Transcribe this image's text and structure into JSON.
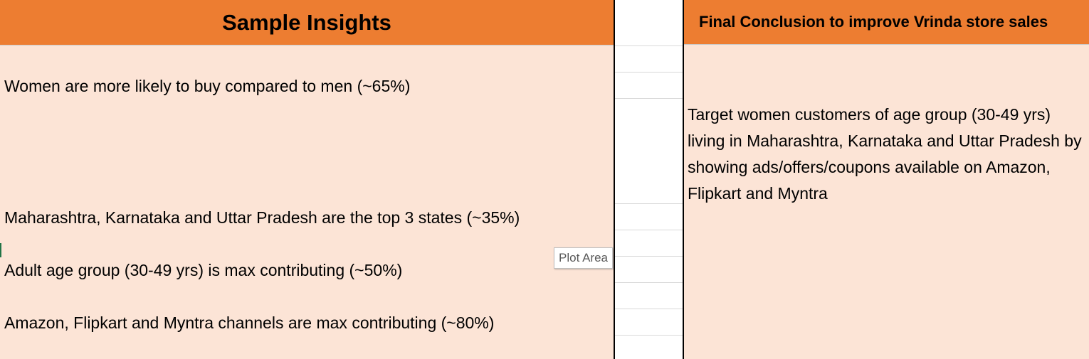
{
  "left_panel": {
    "title": "Sample Insights",
    "insights": [
      "Women are more likely to buy compared to men (~65%)",
      "Maharashtra, Karnataka and Uttar Pradesh are the top 3 states (~35%)",
      "Adult age group (30-49 yrs) is max contributing (~50%)",
      "Amazon, Flipkart and Myntra channels are max contributing (~80%)"
    ]
  },
  "right_panel": {
    "title": "Final Conclusion to improve Vrinda store sales",
    "conclusion": "Target women customers of age group (30-49 yrs) living in Maharashtra, Karnataka and Uttar Pradesh by showing ads/offers/coupons available on Amazon, Flipkart and Myntra"
  },
  "tooltip": {
    "label": "Plot Area"
  },
  "colors": {
    "header_bg": "#ed7d31",
    "panel_bg": "#fce4d6",
    "divider": "#000000"
  }
}
